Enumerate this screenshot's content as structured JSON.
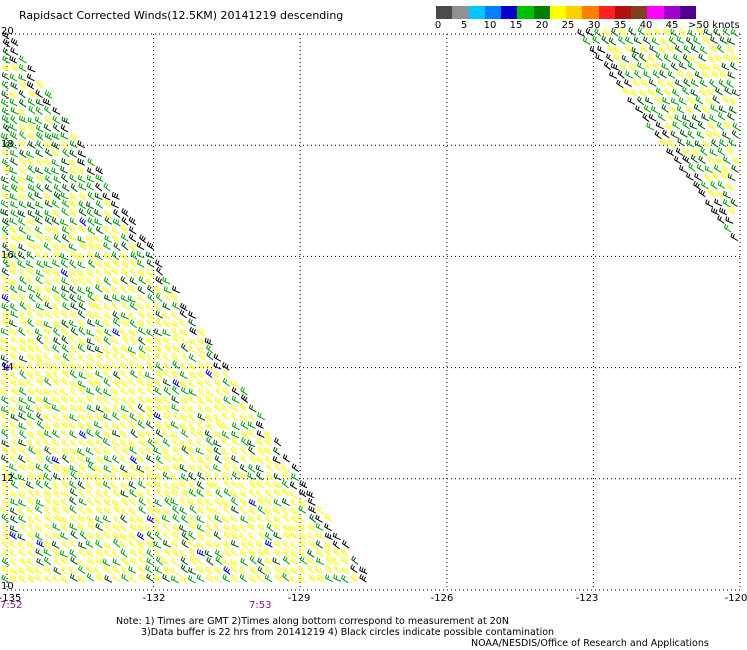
{
  "title": "Rapidsact Corrected Winds(12.5KM) 20141219 descending",
  "legend": {
    "colors": [
      "#4a4a4a",
      "#909090",
      "#00c4ff",
      "#0080ff",
      "#0000c8",
      "#00c000",
      "#008000",
      "#ffff00",
      "#ffd000",
      "#ff8000",
      "#ff2020",
      "#b01010",
      "#804020",
      "#ff00ff",
      "#a000c8",
      "#500090"
    ],
    "labels": [
      "0",
      "5",
      "10",
      "15",
      "20",
      "25",
      "30",
      "35",
      "40",
      "45",
      ">50 knots"
    ]
  },
  "axes": {
    "lat_ticks": [
      "20",
      "18",
      "16",
      "14",
      "12",
      "10"
    ],
    "lon_ticks": [
      "-135",
      "-132",
      "-129",
      "-126",
      "-123",
      "-120"
    ],
    "lat_range": [
      10,
      20
    ],
    "lon_range": [
      -135,
      -120
    ],
    "grid": true
  },
  "times": {
    "left": "7:52",
    "middle": "7:53"
  },
  "notes": {
    "line1": "Note: 1) Times are GMT 2)Times along bottom correspond to measurement at 20N",
    "line2": "3)Data buffer is 22 hrs from 20141219 4) Black circles indicate possible contamination",
    "line3": "NOAA/NESDIS/Office of Research and Applications"
  },
  "wind_colors": {
    "weak": "#0000c8",
    "light": "#ffff00",
    "moderate": "#00a000",
    "strong": "#005000",
    "contaminated": "#000000"
  }
}
